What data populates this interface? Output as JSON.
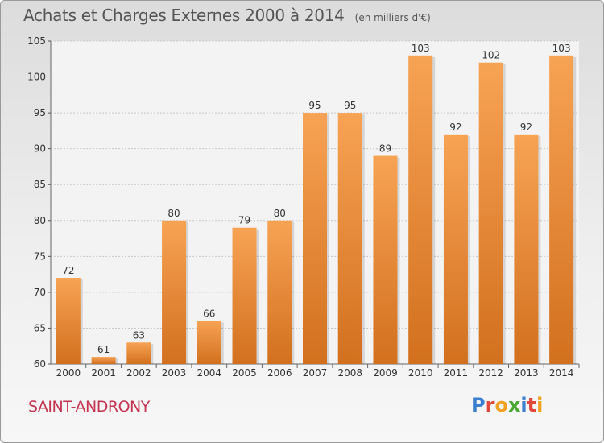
{
  "title": "Achats et Charges Externes 2000 à 2014",
  "unit_note": "(en milliers d'€)",
  "commune": "SAINT-ANDRONY",
  "logo": {
    "text": "Proxiti",
    "colors": [
      "#3a7fd0",
      "#e2473b",
      "#f2a020",
      "#4aa832",
      "#3a7fd0",
      "#e2473b",
      "#f2a020"
    ]
  },
  "colors": {
    "bar_top": "#f7a354",
    "bar_bottom": "#d2701e",
    "axis_text": "#333333",
    "grid": "#c8c8c8"
  },
  "chart_data": {
    "type": "bar",
    "categories": [
      "2000",
      "2001",
      "2002",
      "2003",
      "2004",
      "2005",
      "2006",
      "2007",
      "2008",
      "2009",
      "2010",
      "2011",
      "2012",
      "2013",
      "2014"
    ],
    "values": [
      72,
      61,
      63,
      80,
      66,
      79,
      80,
      95,
      95,
      89,
      103,
      92,
      102,
      92,
      103
    ],
    "ylim": [
      60,
      105
    ],
    "yticks": [
      60,
      65,
      70,
      75,
      80,
      85,
      90,
      95,
      100,
      105
    ],
    "grid": true,
    "data_labels": true
  }
}
